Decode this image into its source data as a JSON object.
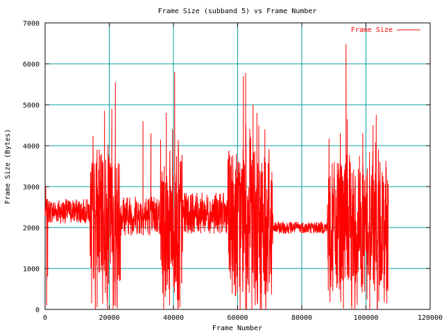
{
  "chart_data": {
    "type": "line",
    "title": "Frame Size (subband 5) vs Frame Number",
    "xlabel": "Frame Number",
    "ylabel": "Frame Size (Bytes)",
    "xlim": [
      0,
      120000
    ],
    "ylim": [
      0,
      7000
    ],
    "xticks": [
      0,
      20000,
      40000,
      60000,
      80000,
      100000,
      120000
    ],
    "yticks": [
      0,
      1000,
      2000,
      3000,
      4000,
      5000,
      6000,
      7000
    ],
    "xtick_labels": [
      "0",
      "20000",
      "40000",
      "60000",
      "80000",
      "100000",
      "120000"
    ],
    "ytick_labels": [
      "0",
      "1000",
      "2000",
      "3000",
      "4000",
      "5000",
      "6000",
      "7000"
    ],
    "grid": true,
    "grid_color": "#00a0a0",
    "legend_position": "top-right",
    "series": [
      {
        "name": "Frame Size",
        "color": "#ff0000",
        "x_range": [
          0,
          107000
        ],
        "segments": [
          {
            "x": [
              0,
              14000
            ],
            "base": 2400,
            "spread": 300,
            "note": "steady"
          },
          {
            "x": [
              14000,
              23500
            ],
            "base": 2200,
            "spread": 1600,
            "note": "bursty"
          },
          {
            "x": [
              23500,
              36000
            ],
            "base": 2300,
            "spread": 500,
            "note": "moderate"
          },
          {
            "x": [
              36000,
              43000
            ],
            "base": 2100,
            "spread": 1800,
            "note": "bursty"
          },
          {
            "x": [
              43000,
              57000
            ],
            "base": 2350,
            "spread": 500,
            "note": "moderate"
          },
          {
            "x": [
              57000,
              71000
            ],
            "base": 2100,
            "spread": 1800,
            "note": "bursty"
          },
          {
            "x": [
              71000,
              88000
            ],
            "base": 2000,
            "spread": 150,
            "note": "steady"
          },
          {
            "x": [
              88000,
              107000
            ],
            "base": 2000,
            "spread": 1600,
            "note": "bursty"
          }
        ],
        "peaks": [
          {
            "x": 200,
            "y": 3000
          },
          {
            "x": 500,
            "y": 100
          },
          {
            "x": 800,
            "y": 800
          },
          {
            "x": 14500,
            "y": 150
          },
          {
            "x": 16200,
            "y": 3900
          },
          {
            "x": 18500,
            "y": 4850
          },
          {
            "x": 19300,
            "y": 250
          },
          {
            "x": 20800,
            "y": 4900
          },
          {
            "x": 21500,
            "y": 100
          },
          {
            "x": 21900,
            "y": 5550
          },
          {
            "x": 22500,
            "y": 20
          },
          {
            "x": 30500,
            "y": 4600
          },
          {
            "x": 33000,
            "y": 4300
          },
          {
            "x": 36000,
            "y": 4000
          },
          {
            "x": 37800,
            "y": 4800
          },
          {
            "x": 38800,
            "y": 100
          },
          {
            "x": 40400,
            "y": 5800
          },
          {
            "x": 41500,
            "y": 4150
          },
          {
            "x": 42000,
            "y": 50
          },
          {
            "x": 61800,
            "y": 5700
          },
          {
            "x": 62500,
            "y": 5780
          },
          {
            "x": 63600,
            "y": 400
          },
          {
            "x": 64800,
            "y": 5000
          },
          {
            "x": 65500,
            "y": 100
          },
          {
            "x": 66000,
            "y": 4800
          },
          {
            "x": 68500,
            "y": 4400
          },
          {
            "x": 92000,
            "y": 4300
          },
          {
            "x": 93000,
            "y": 20
          },
          {
            "x": 93800,
            "y": 6480
          },
          {
            "x": 94200,
            "y": 4650
          },
          {
            "x": 95500,
            "y": 100
          },
          {
            "x": 99000,
            "y": 4300
          },
          {
            "x": 102200,
            "y": 4500
          },
          {
            "x": 103200,
            "y": 4750
          },
          {
            "x": 104000,
            "y": 200
          },
          {
            "x": 106500,
            "y": 150
          }
        ]
      }
    ]
  }
}
